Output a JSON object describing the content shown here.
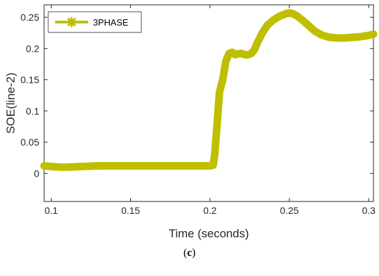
{
  "caption": {
    "open": "(",
    "letter": "c",
    "close": ")"
  },
  "chart_data": {
    "type": "line",
    "title": "",
    "xlabel": "Time (seconds)",
    "ylabel": "SOE(line-2)",
    "xlim": [
      0.0955,
      0.303
    ],
    "ylim": [
      -0.045,
      0.27
    ],
    "xticks": [
      0.1,
      0.15,
      0.2,
      0.25,
      0.3
    ],
    "xtick_labels": [
      "0.1",
      "0.15",
      "0.2",
      "0.25",
      "0.3"
    ],
    "yticks": [
      0,
      0.05,
      0.1,
      0.15,
      0.2,
      0.25
    ],
    "ytick_labels": [
      "0",
      "0.05",
      "0.1",
      "0.15",
      "0.2",
      "0.25"
    ],
    "grid": false,
    "legend": {
      "position": "top-left"
    },
    "series": [
      {
        "name": "3PHASE",
        "color": "#bfbf00",
        "marker": "asterisk",
        "x": [
          0.0955,
          0.1,
          0.105,
          0.11,
          0.12,
          0.13,
          0.14,
          0.15,
          0.16,
          0.17,
          0.18,
          0.19,
          0.195,
          0.2,
          0.202,
          0.203,
          0.2045,
          0.206,
          0.208,
          0.21,
          0.212,
          0.214,
          0.216,
          0.218,
          0.22,
          0.222,
          0.224,
          0.226,
          0.228,
          0.23,
          0.233,
          0.236,
          0.24,
          0.244,
          0.248,
          0.25,
          0.252,
          0.255,
          0.258,
          0.262,
          0.266,
          0.27,
          0.275,
          0.28,
          0.285,
          0.29,
          0.295,
          0.3,
          0.303
        ],
        "y": [
          0.012,
          0.011,
          0.01,
          0.01,
          0.011,
          0.012,
          0.012,
          0.012,
          0.012,
          0.012,
          0.012,
          0.012,
          0.012,
          0.012,
          0.013,
          0.03,
          0.08,
          0.13,
          0.15,
          0.18,
          0.192,
          0.194,
          0.19,
          0.192,
          0.192,
          0.19,
          0.19,
          0.192,
          0.198,
          0.21,
          0.225,
          0.237,
          0.246,
          0.252,
          0.256,
          0.257,
          0.256,
          0.252,
          0.246,
          0.237,
          0.228,
          0.222,
          0.218,
          0.217,
          0.217,
          0.218,
          0.219,
          0.221,
          0.223
        ]
      }
    ]
  }
}
